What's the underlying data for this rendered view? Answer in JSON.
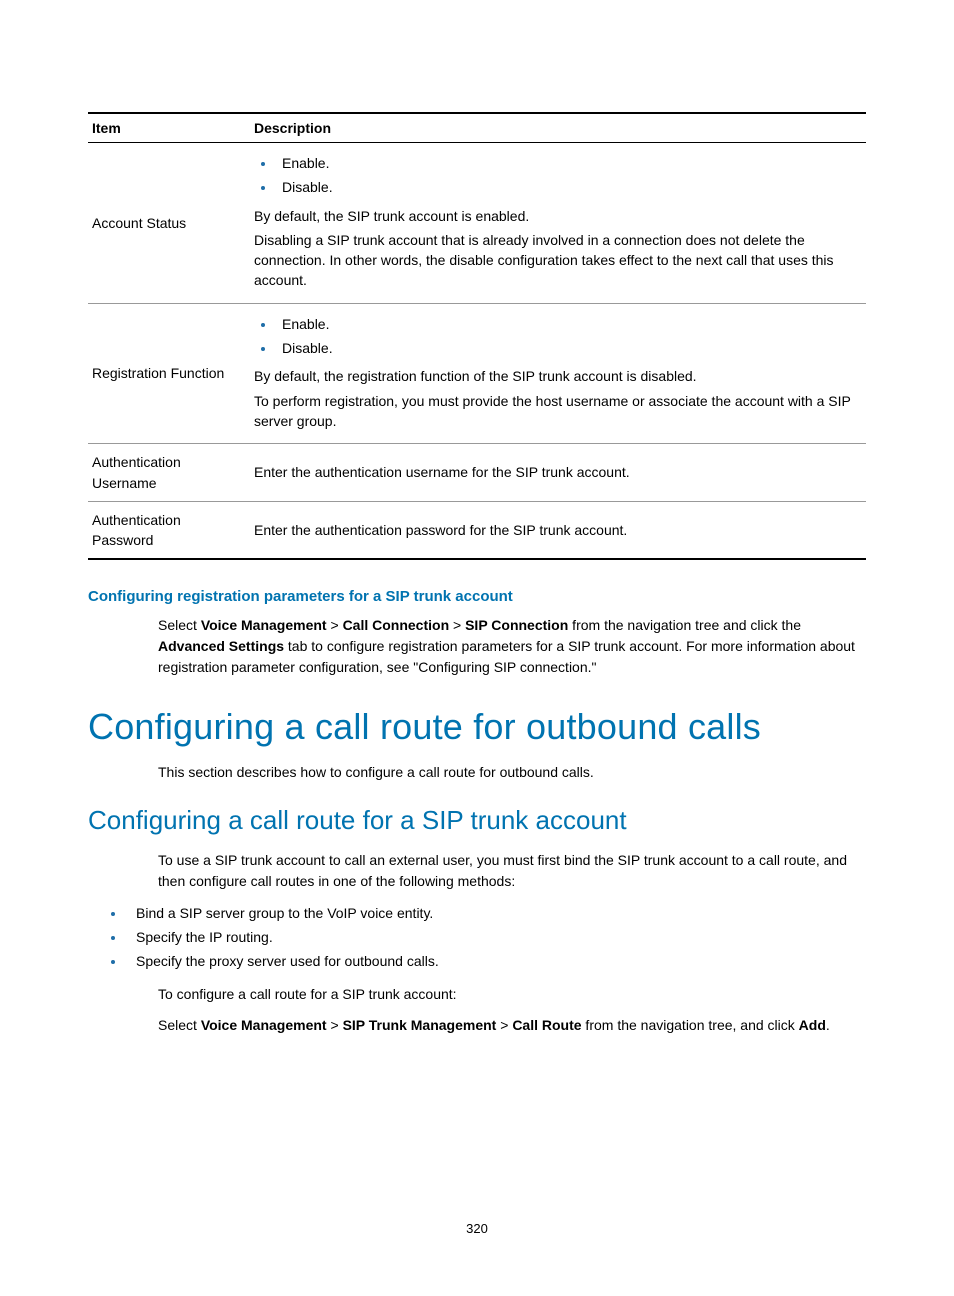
{
  "colors": {
    "heading_blue": "#0073b0",
    "bullet_blue": "#1f6ea8",
    "text": "#000000",
    "rule_dark": "#000000",
    "rule_light": "#999999",
    "background": "#ffffff"
  },
  "table": {
    "headers": {
      "item": "Item",
      "description": "Description"
    },
    "rows": [
      {
        "item": "Account Status",
        "bullets": [
          "Enable.",
          "Disable."
        ],
        "paras": [
          "By default, the SIP trunk account is enabled.",
          "Disabling a SIP trunk account that is already involved in a connection does not delete the connection. In other words, the disable configuration takes effect to the next call that uses this account."
        ]
      },
      {
        "item": "Registration Function",
        "bullets": [
          "Enable.",
          "Disable."
        ],
        "paras": [
          "By default, the registration function of the SIP trunk account is disabled.",
          "To perform registration, you must provide the host username or associate the account with a SIP server group."
        ]
      },
      {
        "item": "Authentication Username",
        "bullets": [],
        "paras": [
          "Enter the authentication username for the SIP trunk account."
        ]
      },
      {
        "item": "Authentication Password",
        "bullets": [],
        "paras": [
          "Enter the authentication password for the SIP trunk account."
        ]
      }
    ]
  },
  "section_h3": "Configuring registration parameters for a SIP trunk account",
  "para_after_h3": {
    "pre": "Select ",
    "b1": "Voice Management",
    "gt1": " > ",
    "b2": "Call Connection",
    "gt2": " > ",
    "b3": "SIP Connection",
    "mid": " from the navigation tree and click the ",
    "b4": "Advanced Settings",
    "post": " tab to configure registration parameters for a SIP trunk account. For more information about registration parameter configuration, see \"Configuring SIP connection.\""
  },
  "h1": "Configuring a call route for outbound calls",
  "p_after_h1": "This section describes how to configure a call route for outbound calls.",
  "h2": "Configuring a call route for a SIP trunk account",
  "p_after_h2": "To use a SIP trunk account to call an external user, you must first bind the SIP trunk account to a call route, and then configure call routes in one of the following methods:",
  "methods": [
    "Bind a SIP server group to the VoIP voice entity.",
    "Specify the IP routing.",
    "Specify the proxy server used for outbound calls."
  ],
  "p_configure": "To configure a call route for a SIP trunk account:",
  "nav2": {
    "pre": "Select ",
    "b1": "Voice Management",
    "gt1": " > ",
    "b2": "SIP Trunk Management",
    "gt2": " > ",
    "b3": "Call Route",
    "mid": " from the navigation tree, and click ",
    "b4": "Add",
    "post": "."
  },
  "page_number": "320"
}
